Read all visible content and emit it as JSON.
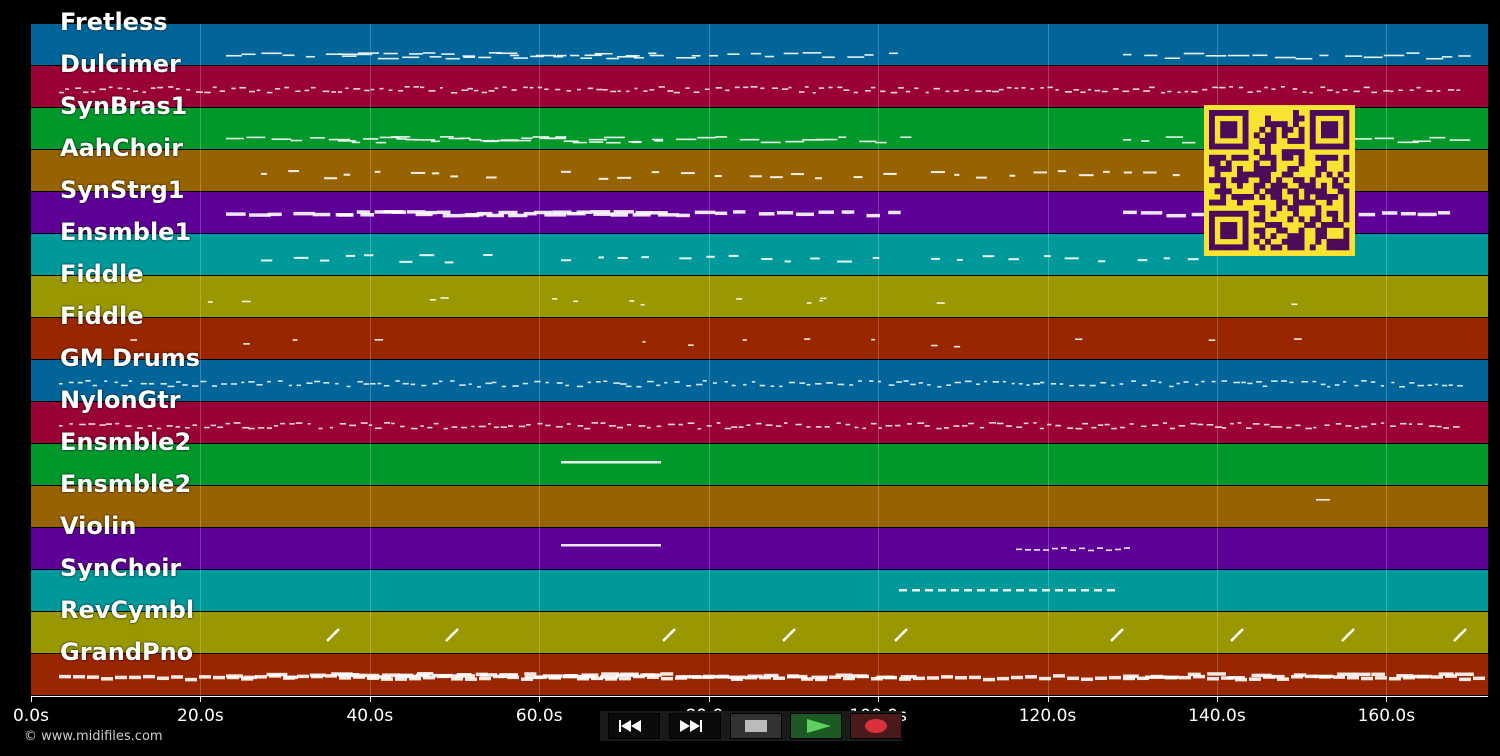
{
  "tracks": [
    {
      "name": "Fretless",
      "color": "#01659a",
      "notes": "thin"
    },
    {
      "name": "Dulcimer",
      "color": "#9a0237",
      "notes": "dense"
    },
    {
      "name": "SynBras1",
      "color": "#00982b",
      "notes": "thin"
    },
    {
      "name": "AahChoir",
      "color": "#976200",
      "notes": "sparse"
    },
    {
      "name": "SynStrg1",
      "color": "#5e0097",
      "notes": "thick"
    },
    {
      "name": "Ensmble1",
      "color": "#00999a",
      "notes": "sparse"
    },
    {
      "name": "Fiddle",
      "color": "#999800",
      "notes": "few"
    },
    {
      "name": "Fiddle",
      "color": "#982600",
      "notes": "few"
    },
    {
      "name": "GM Drums",
      "color": "#01659a",
      "notes": "dense"
    },
    {
      "name": "NylonGtr",
      "color": "#9a0237",
      "notes": "dense"
    },
    {
      "name": "Ensmble2",
      "color": "#00982b",
      "notes": "one"
    },
    {
      "name": "Ensmble2",
      "color": "#976200",
      "notes": "one"
    },
    {
      "name": "Violin",
      "color": "#5e0097",
      "notes": "two"
    },
    {
      "name": "SynChoir",
      "color": "#00999a",
      "notes": "dash"
    },
    {
      "name": "RevCymbl",
      "color": "#999800",
      "notes": "slash"
    },
    {
      "name": "GrandPno",
      "color": "#982600",
      "notes": "thick"
    }
  ],
  "xaxis": {
    "labels": [
      "0.0s",
      "20.0s",
      "40.0s",
      "60.0s",
      "80.0s",
      "100.0s",
      "120.0s",
      "140.0s",
      "160.0s"
    ],
    "max_seconds": 172
  },
  "credit": "© www.midifiles.com",
  "controls": [
    {
      "name": "rewind-button",
      "icon": "rewind-icon"
    },
    {
      "name": "fast-forward-button",
      "icon": "fast-forward-icon"
    },
    {
      "name": "stop-button",
      "icon": "stop-icon"
    },
    {
      "name": "play-button",
      "icon": "play-icon"
    },
    {
      "name": "record-button",
      "icon": "record-icon"
    }
  ],
  "qr_code": {
    "icon": "qr-code-icon",
    "fg": "#4d0b5a",
    "bg": "#f6e332"
  }
}
